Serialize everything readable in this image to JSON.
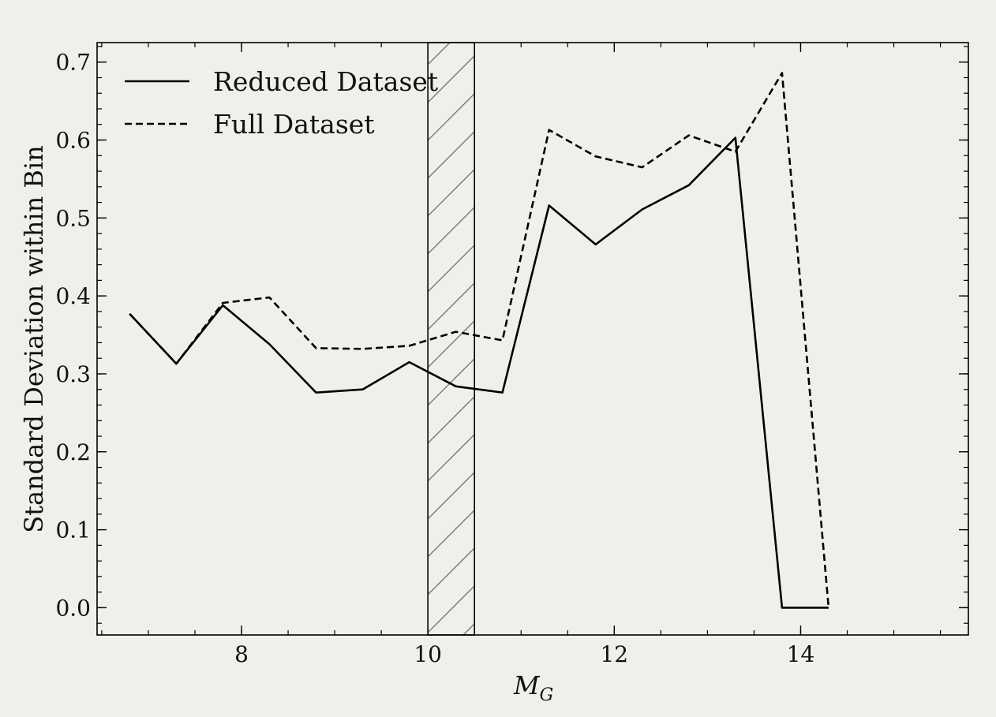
{
  "chart_data": {
    "type": "line",
    "xlabel": "M",
    "xlabel_subscript": "G",
    "ylabel": "Standard Deviation within Bin",
    "xlim": [
      6.45,
      15.8
    ],
    "ylim": [
      -0.035,
      0.725
    ],
    "x_ticks": [
      8,
      10,
      12,
      14
    ],
    "x_tick_labels": [
      "8",
      "10",
      "12",
      "14"
    ],
    "x_minor_step": 0.5,
    "y_ticks": [
      0.0,
      0.1,
      0.2,
      0.3,
      0.4,
      0.5,
      0.6,
      0.7
    ],
    "y_tick_labels": [
      "0.0",
      "0.1",
      "0.2",
      "0.3",
      "0.4",
      "0.5",
      "0.6",
      "0.7"
    ],
    "y_minor_step": 0.02,
    "grid": false,
    "legend_position": "top-left",
    "shaded_region": {
      "x_start": 10.0,
      "x_end": 10.5,
      "pattern": "hatch"
    },
    "series": [
      {
        "name": "Reduced Dataset",
        "style": "solid",
        "color": "#000000",
        "x": [
          6.8,
          7.3,
          7.8,
          8.3,
          8.8,
          9.3,
          9.8,
          10.3,
          10.8,
          11.3,
          11.8,
          12.3,
          12.8,
          13.3,
          13.8,
          14.3
        ],
        "y": [
          0.377,
          0.313,
          0.388,
          0.338,
          0.276,
          0.28,
          0.315,
          0.284,
          0.276,
          0.516,
          0.466,
          0.511,
          0.542,
          0.603,
          0.0,
          0.0
        ]
      },
      {
        "name": "Full Dataset",
        "style": "dashed",
        "color": "#000000",
        "x": [
          6.8,
          7.3,
          7.8,
          8.3,
          8.8,
          9.3,
          9.8,
          10.3,
          10.8,
          11.3,
          11.8,
          12.3,
          12.8,
          13.3,
          13.8,
          14.3
        ],
        "y": [
          0.377,
          0.313,
          0.391,
          0.398,
          0.333,
          0.332,
          0.336,
          0.354,
          0.343,
          0.613,
          0.579,
          0.565,
          0.606,
          0.585,
          0.686,
          0.0
        ]
      }
    ]
  }
}
